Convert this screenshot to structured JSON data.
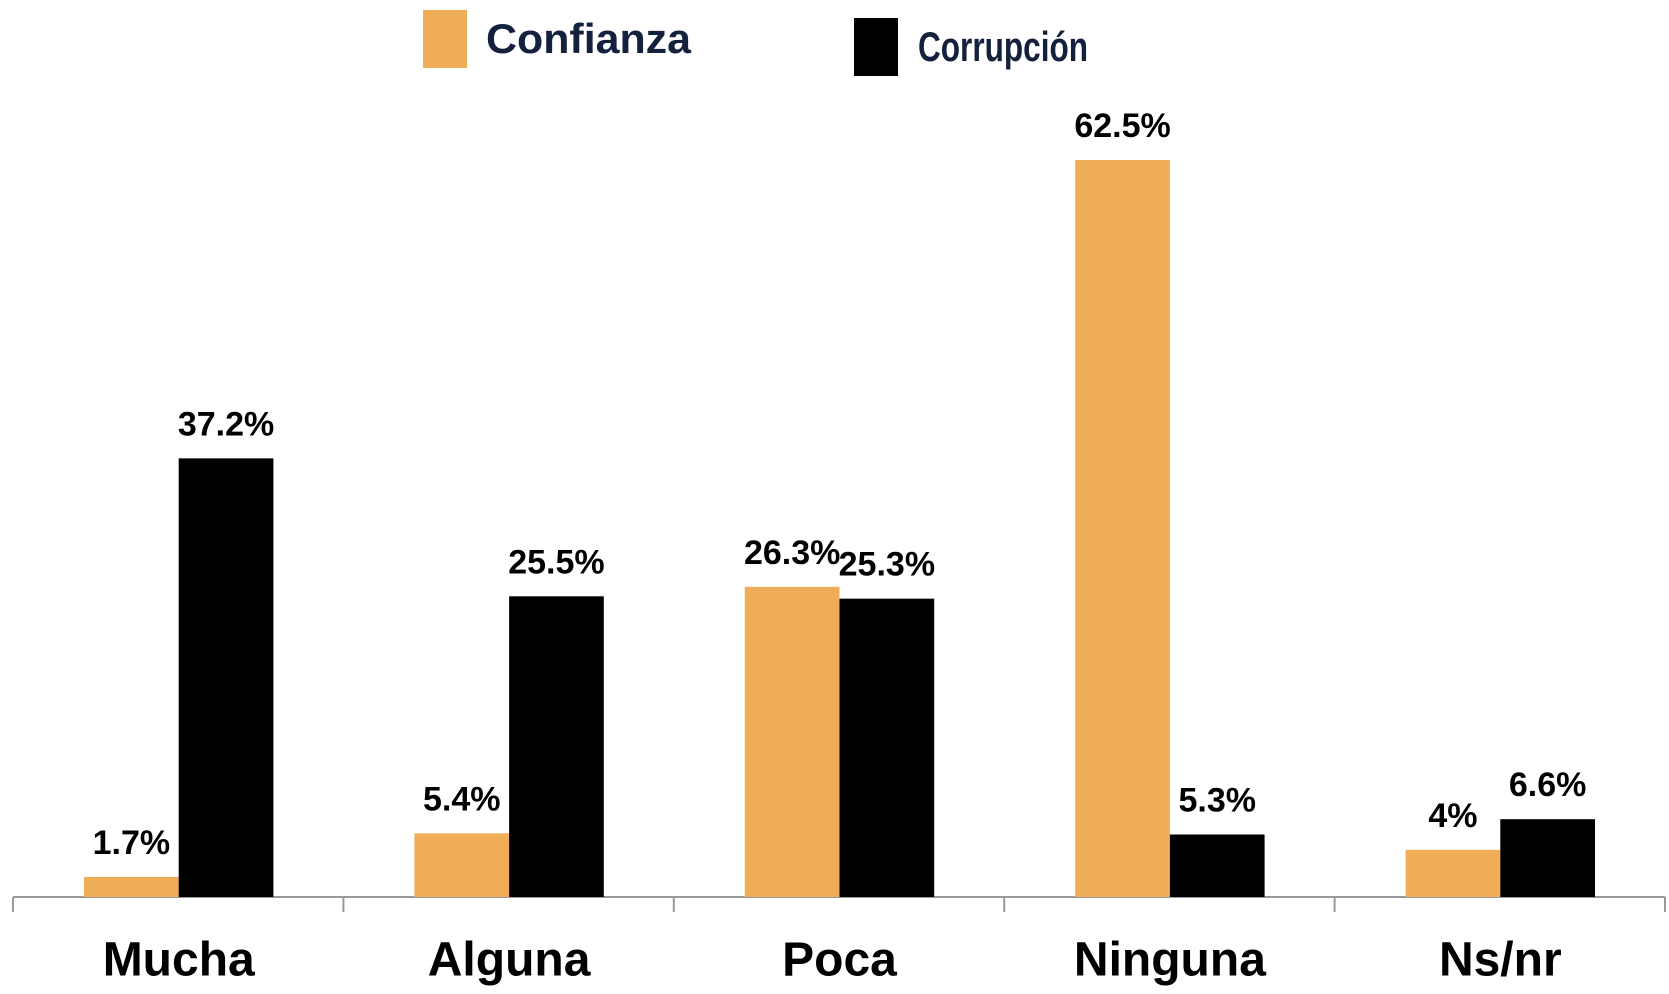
{
  "chart_data": {
    "type": "bar",
    "categories": [
      "Mucha",
      "Alguna",
      "Poca",
      "Ninguna",
      "Ns/nr"
    ],
    "series": [
      {
        "name": "Confianza",
        "color": "#f0ad58",
        "values": [
          1.7,
          5.4,
          26.3,
          62.5,
          4
        ],
        "value_labels": [
          "1.7%",
          "5.4%",
          "26.3%",
          "62.5%",
          "4%"
        ]
      },
      {
        "name": "Corrupción",
        "color": "#000000",
        "values": [
          37.2,
          25.5,
          25.3,
          5.3,
          6.6
        ],
        "value_labels": [
          "37.2%",
          "25.5%",
          "25.3%",
          "5.3%",
          "6.6%"
        ]
      }
    ]
  }
}
